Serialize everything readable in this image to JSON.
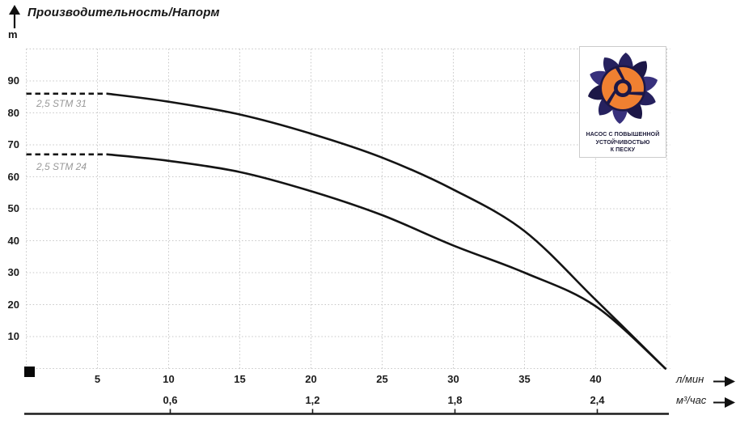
{
  "title": "Производительность/Напорм",
  "y_unit": "m",
  "axis1_unit": "л/мин",
  "axis2_unit": "м³/час",
  "series_labels": {
    "s1": "2,5 STM 31",
    "s2": "2,5 STM 24"
  },
  "badge": {
    "line1": "НАСОС С ПОВЫШЕННОЙ",
    "line2": "УСТОЙЧИВОСТЬЮ",
    "line3": "К ПЕСКУ"
  },
  "colors": {
    "curve": "#141414",
    "grid": "#c6c6c6",
    "series_label": "#999999",
    "logo_navy": "#26215e",
    "logo_navy_dark": "#1c1747",
    "logo_navy_light": "#37307c",
    "logo_orange": "#f08031"
  },
  "chart_data": {
    "type": "line",
    "title": "Производительность/Напорм",
    "ylabel": "m",
    "y_axis": {
      "unit": "m",
      "range": [
        0,
        100
      ],
      "step": 10,
      "ticks": [
        10,
        20,
        30,
        40,
        50,
        60,
        70,
        80,
        90
      ],
      "grid": true
    },
    "x_axes": [
      {
        "unit": "л/мин",
        "range": [
          0,
          45
        ],
        "step": 5,
        "ticks": [
          5,
          10,
          15,
          20,
          25,
          30,
          35,
          40
        ]
      },
      {
        "unit": "м³/час",
        "ticks": [
          {
            "label": "0,6",
            "at": 10
          },
          {
            "label": "1,2",
            "at": 20
          },
          {
            "label": "1,8",
            "at": 30
          },
          {
            "label": "2,4",
            "at": 40
          }
        ]
      }
    ],
    "series": [
      {
        "name": "2,5 STM 31",
        "dashed_lead": [
          [
            0,
            86
          ],
          [
            5.7,
            86
          ]
        ],
        "points": [
          [
            5.7,
            86
          ],
          [
            10,
            83.5
          ],
          [
            15,
            79.5
          ],
          [
            20,
            73.5
          ],
          [
            25,
            66
          ],
          [
            30,
            56
          ],
          [
            35,
            43
          ],
          [
            40,
            21.5
          ],
          [
            44.9,
            0
          ]
        ]
      },
      {
        "name": "2,5 STM 24",
        "dashed_lead": [
          [
            0,
            67
          ],
          [
            5.7,
            67
          ]
        ],
        "points": [
          [
            5.7,
            67
          ],
          [
            10,
            65
          ],
          [
            15,
            61.5
          ],
          [
            20,
            55.5
          ],
          [
            25,
            48
          ],
          [
            30,
            38.5
          ],
          [
            35,
            30
          ],
          [
            40,
            19.5
          ],
          [
            44.9,
            0
          ]
        ]
      }
    ],
    "legend_position": "on-curve-left",
    "grid": true
  }
}
